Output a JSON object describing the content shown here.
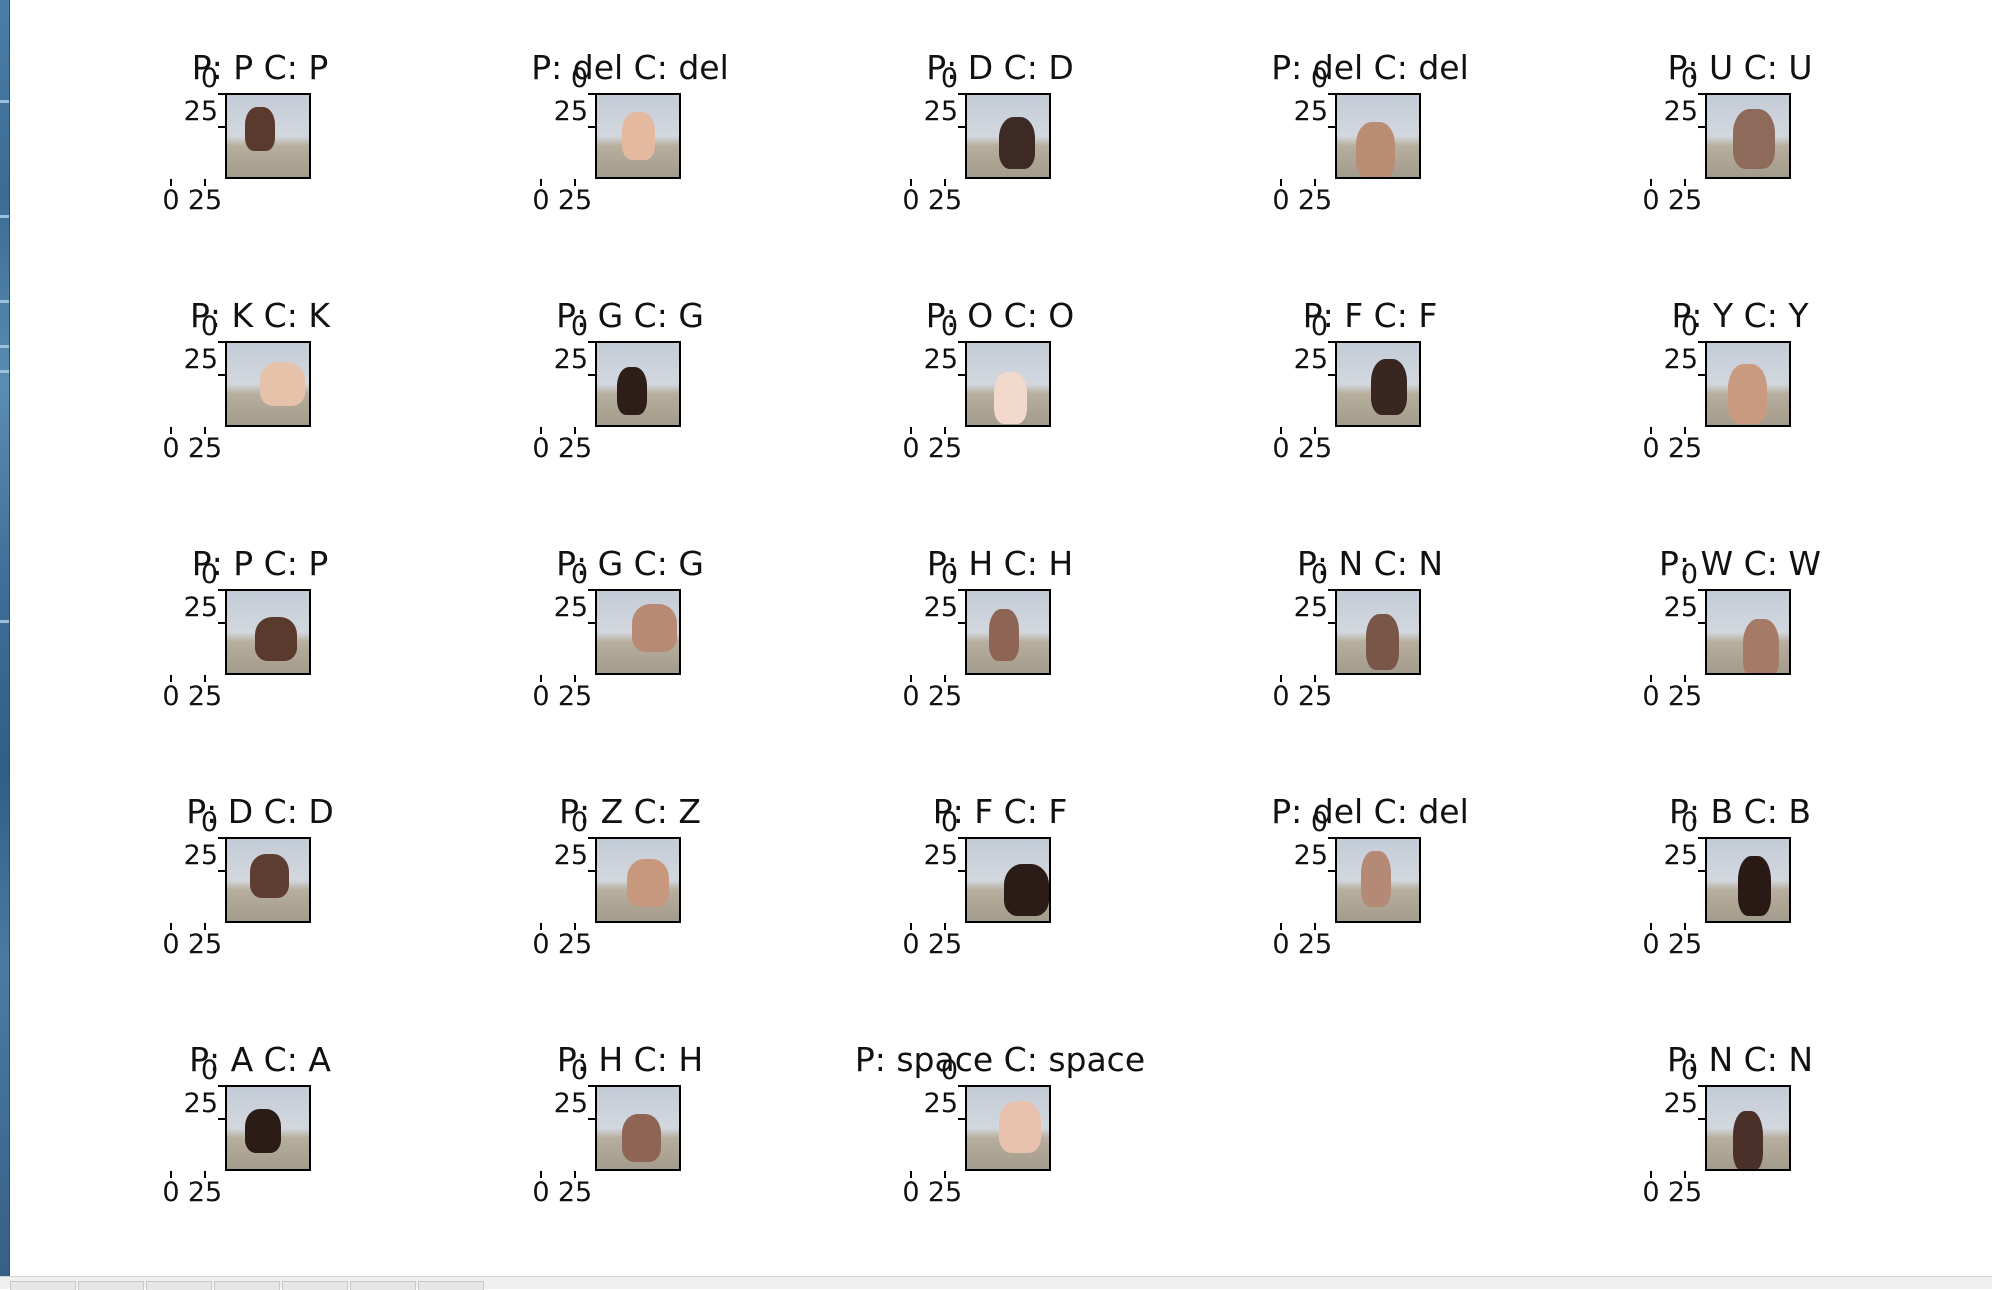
{
  "figure": {
    "panels": [
      {
        "title": "P: P C: P",
        "ytick_labels": [
          "0",
          "25"
        ],
        "xtick_labels": [
          "0",
          "25"
        ],
        "image": "hand-sign-photo",
        "hand_color": "#5a3a2c"
      },
      {
        "title": "P: del C: del",
        "ytick_labels": [
          "0",
          "25"
        ],
        "xtick_labels": [
          "0",
          "25"
        ],
        "image": "hand-sign-photo",
        "hand_color": "#e4b9a0"
      },
      {
        "title": "P: D C: D",
        "ytick_labels": [
          "0",
          "25"
        ],
        "xtick_labels": [
          "0",
          "25"
        ],
        "image": "hand-sign-photo",
        "hand_color": "#3e2a24"
      },
      {
        "title": "P: del C: del",
        "ytick_labels": [
          "0",
          "25"
        ],
        "xtick_labels": [
          "0",
          "25"
        ],
        "image": "hand-sign-photo",
        "hand_color": "#b98c74"
      },
      {
        "title": "P: U C: U",
        "ytick_labels": [
          "0",
          "25"
        ],
        "xtick_labels": [
          "0",
          "25"
        ],
        "image": "hand-sign-photo",
        "hand_color": "#8e6a5a"
      },
      {
        "title": "P: K C: K",
        "ytick_labels": [
          "0",
          "25"
        ],
        "xtick_labels": [
          "0",
          "25"
        ],
        "image": "hand-sign-photo",
        "hand_color": "#e6c2aa"
      },
      {
        "title": "P: G C: G",
        "ytick_labels": [
          "0",
          "25"
        ],
        "xtick_labels": [
          "0",
          "25"
        ],
        "image": "hand-sign-photo",
        "hand_color": "#2e1e1a"
      },
      {
        "title": "P: O C: O",
        "ytick_labels": [
          "0",
          "25"
        ],
        "xtick_labels": [
          "0",
          "25"
        ],
        "image": "hand-sign-photo",
        "hand_color": "#f2d9cc"
      },
      {
        "title": "P: F C: F",
        "ytick_labels": [
          "0",
          "25"
        ],
        "xtick_labels": [
          "0",
          "25"
        ],
        "image": "hand-sign-photo",
        "hand_color": "#3a2620"
      },
      {
        "title": "P: Y C: Y",
        "ytick_labels": [
          "0",
          "25"
        ],
        "xtick_labels": [
          "0",
          "25"
        ],
        "image": "hand-sign-photo",
        "hand_color": "#c99a80"
      },
      {
        "title": "P: P C: P",
        "ytick_labels": [
          "0",
          "25"
        ],
        "xtick_labels": [
          "0",
          "25"
        ],
        "image": "hand-sign-photo",
        "hand_color": "#5a3a2c"
      },
      {
        "title": "P: G C: G",
        "ytick_labels": [
          "0",
          "25"
        ],
        "xtick_labels": [
          "0",
          "25"
        ],
        "image": "hand-sign-photo",
        "hand_color": "#b78a76"
      },
      {
        "title": "P: H C: H",
        "ytick_labels": [
          "0",
          "25"
        ],
        "xtick_labels": [
          "0",
          "25"
        ],
        "image": "hand-sign-photo",
        "hand_color": "#8e6454"
      },
      {
        "title": "P: N C: N",
        "ytick_labels": [
          "0",
          "25"
        ],
        "xtick_labels": [
          "0",
          "25"
        ],
        "image": "hand-sign-photo",
        "hand_color": "#7a5648"
      },
      {
        "title": "P: W C: W",
        "ytick_labels": [
          "0",
          "25"
        ],
        "xtick_labels": [
          "0",
          "25"
        ],
        "image": "hand-sign-photo",
        "hand_color": "#a57a66"
      },
      {
        "title": "P: D C: D",
        "ytick_labels": [
          "0",
          "25"
        ],
        "xtick_labels": [
          "0",
          "25"
        ],
        "image": "hand-sign-photo",
        "hand_color": "#5e3e32"
      },
      {
        "title": "P: Z C: Z",
        "ytick_labels": [
          "0",
          "25"
        ],
        "xtick_labels": [
          "0",
          "25"
        ],
        "image": "hand-sign-photo",
        "hand_color": "#c8987e"
      },
      {
        "title": "P: F C: F",
        "ytick_labels": [
          "0",
          "25"
        ],
        "xtick_labels": [
          "0",
          "25"
        ],
        "image": "hand-sign-photo",
        "hand_color": "#2c1c18"
      },
      {
        "title": "P: del C: del",
        "ytick_labels": [
          "0",
          "25"
        ],
        "xtick_labels": [
          "0",
          "25"
        ],
        "image": "hand-sign-photo",
        "hand_color": "#b48a76"
      },
      {
        "title": "P: B C: B",
        "ytick_labels": [
          "0",
          "25"
        ],
        "xtick_labels": [
          "0",
          "25"
        ],
        "image": "hand-sign-photo",
        "hand_color": "#2a1a16"
      },
      {
        "title": "P: A C: A",
        "ytick_labels": [
          "0",
          "25"
        ],
        "xtick_labels": [
          "0",
          "25"
        ],
        "image": "hand-sign-photo",
        "hand_color": "#2c1c18"
      },
      {
        "title": "P: H C: H",
        "ytick_labels": [
          "0",
          "25"
        ],
        "xtick_labels": [
          "0",
          "25"
        ],
        "image": "hand-sign-photo",
        "hand_color": "#8e6454"
      },
      {
        "title": "P: space C: space",
        "ytick_labels": [
          "0",
          "25"
        ],
        "xtick_labels": [
          "0",
          "25"
        ],
        "image": "hand-sign-photo",
        "hand_color": "#e8c2ae"
      },
      null,
      {
        "title": "P: N C: N",
        "ytick_labels": [
          "0",
          "25"
        ],
        "xtick_labels": [
          "0",
          "25"
        ],
        "image": "hand-sign-photo",
        "hand_color": "#4a3028"
      }
    ]
  },
  "colors": {
    "background": "#ffffff",
    "axis": "#000000",
    "wall": "#cfd6de",
    "table": "#a89f90"
  }
}
